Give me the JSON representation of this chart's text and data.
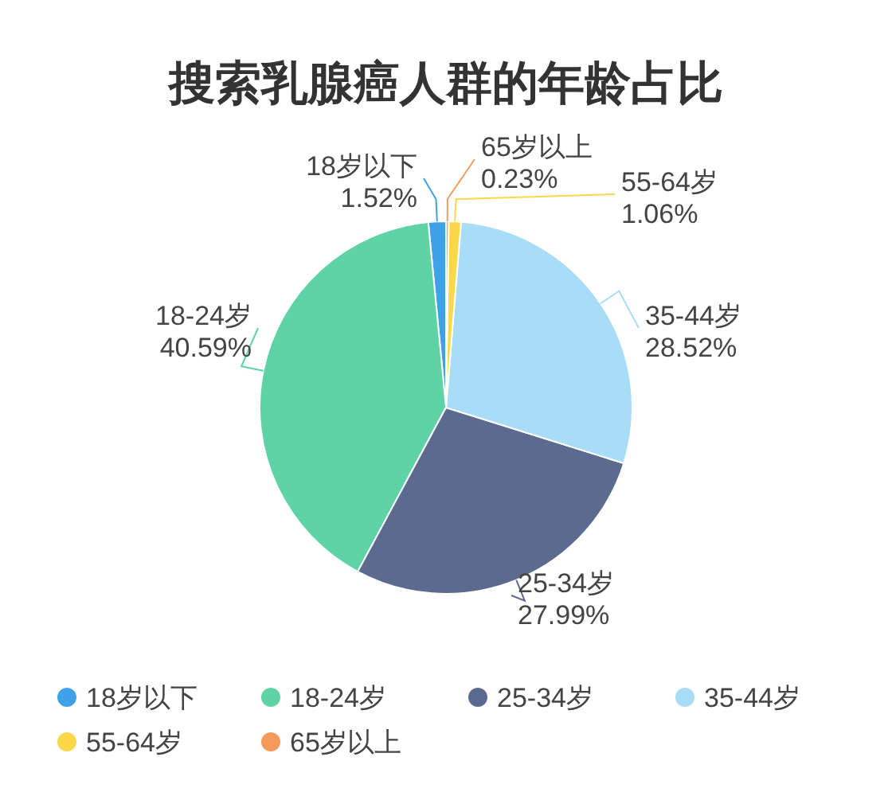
{
  "chart_data": {
    "type": "pie",
    "title": "搜索乳腺癌人群的年龄占比",
    "categories": [
      "18岁以下",
      "18-24岁",
      "25-34岁",
      "35-44岁",
      "55-64岁",
      "65岁以上"
    ],
    "values": [
      1.52,
      40.59,
      27.99,
      28.52,
      1.06,
      0.23
    ],
    "colors": [
      "#3fa2e8",
      "#5fd3a6",
      "#5b6a8e",
      "#a9dcf6",
      "#fbd84a",
      "#f59a5c"
    ],
    "value_labels": [
      "1.52%",
      "40.59%",
      "27.99%",
      "28.52%",
      "1.06%",
      "0.23%"
    ],
    "legend": "bottom"
  }
}
